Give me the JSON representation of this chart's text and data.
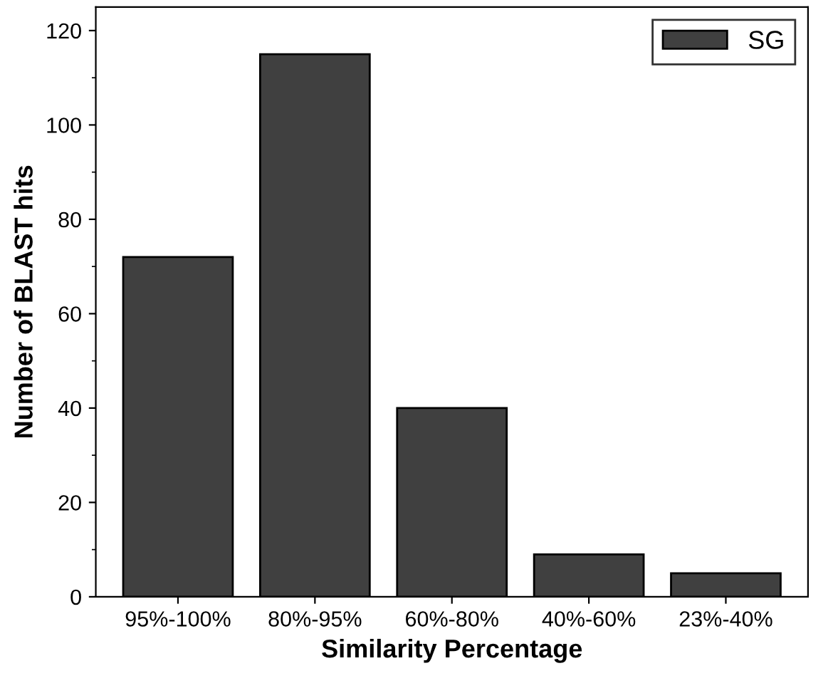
{
  "chart_data": {
    "type": "bar",
    "xlabel": "Similarity Percentage",
    "ylabel": "Number of BLAST hits",
    "categories": [
      "95%-100%",
      "80%-95%",
      "60%-80%",
      "40%-60%",
      "23%-40%"
    ],
    "series": [
      {
        "name": "SG",
        "color": "#404040",
        "values": [
          72,
          115,
          40,
          9,
          5
        ]
      }
    ],
    "ylim": [
      0,
      125
    ],
    "yticks": [
      0,
      20,
      40,
      60,
      80,
      100,
      120
    ],
    "grid": false,
    "legend": "top right"
  }
}
